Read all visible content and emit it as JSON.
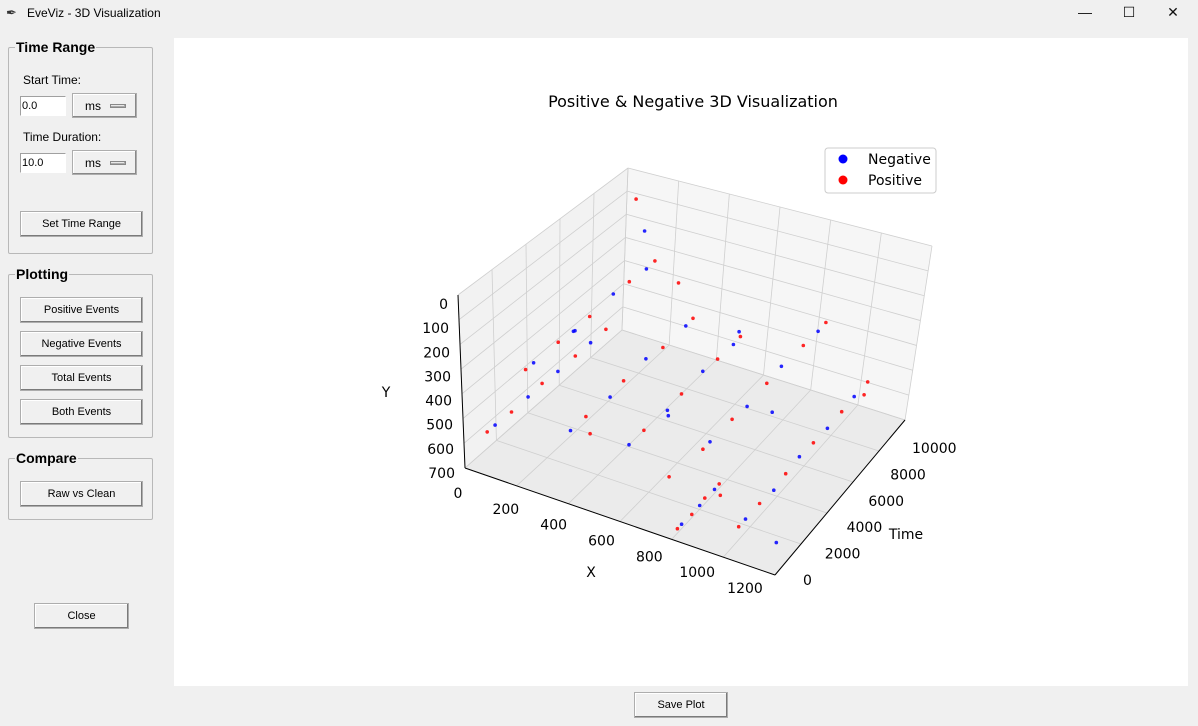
{
  "window": {
    "title": "EveViz - 3D Visualization",
    "icon": "feather-icon",
    "controls": [
      "minimize-icon",
      "maximize-icon",
      "close-icon"
    ]
  },
  "sidebar": {
    "time_range": {
      "title": "Time Range",
      "start_label": "Start Time:",
      "start_value": "0.0",
      "start_unit": "ms",
      "duration_label": "Time Duration:",
      "duration_value": "10.0",
      "duration_unit": "ms",
      "set_button": "Set Time Range"
    },
    "plotting": {
      "title": "Plotting",
      "buttons": [
        "Positive Events",
        "Negative Events",
        "Total Events",
        "Both Events"
      ]
    },
    "compare": {
      "title": "Compare",
      "buttons": [
        "Raw vs Clean"
      ]
    },
    "close_button": "Close"
  },
  "save_button": "Save Plot",
  "chart_data": {
    "type": "scatter3d",
    "title": "Positive & Negative 3D Visualization",
    "xlabel": "X",
    "ylabel": "Time",
    "zlabel": "Y",
    "xlim": [
      0,
      1200
    ],
    "tlim": [
      0,
      10000
    ],
    "ylim": [
      0,
      700
    ],
    "y_inverted": true,
    "x_ticks": [
      "0",
      "200",
      "400",
      "600",
      "800",
      "1000",
      "1200"
    ],
    "t_ticks": [
      "0",
      "2000",
      "4000",
      "6000",
      "8000",
      "10000"
    ],
    "y_ticks": [
      "0",
      "100",
      "200",
      "300",
      "400",
      "500",
      "600",
      "700"
    ],
    "grid": true,
    "legend_placement": "top-right",
    "point_format": [
      "x",
      "time",
      "y"
    ],
    "series": [
      {
        "name": "Negative",
        "color": "#0000ff",
        "points": [
          [
            60,
            1000,
            560
          ],
          [
            65,
            3000,
            555
          ],
          [
            58,
            5000,
            565
          ],
          [
            62,
            7000,
            558
          ],
          [
            150,
            2000,
            330
          ],
          [
            155,
            4500,
            335
          ],
          [
            148,
            7000,
            325
          ],
          [
            152,
            9000,
            332
          ],
          [
            350,
            1000,
            480
          ],
          [
            355,
            3500,
            485
          ],
          [
            345,
            6000,
            475
          ],
          [
            352,
            8500,
            482
          ],
          [
            600,
            500,
            420
          ],
          [
            605,
            3000,
            425
          ],
          [
            598,
            5500,
            415
          ],
          [
            602,
            7500,
            422
          ],
          [
            850,
            1500,
            380
          ],
          [
            855,
            4000,
            385
          ],
          [
            848,
            6500,
            375
          ],
          [
            852,
            9000,
            382
          ],
          [
            1050,
            500,
            560
          ],
          [
            1055,
            2500,
            565
          ],
          [
            1048,
            4500,
            555
          ],
          [
            1052,
            6500,
            562
          ],
          [
            1050,
            8500,
            558
          ],
          [
            820,
            300,
            650
          ],
          [
            825,
            1500,
            645
          ],
          [
            818,
            2700,
            655
          ],
          [
            300,
            2000,
            150
          ],
          [
            700,
            6000,
            250
          ],
          [
            1000,
            3000,
            300
          ],
          [
            200,
            8000,
            100
          ],
          [
            1150,
            1000,
            650
          ],
          [
            500,
            5000,
            600
          ]
        ]
      },
      {
        "name": "Positive",
        "color": "#ff0000",
        "points": [
          [
            60,
            500,
            560
          ],
          [
            62,
            2000,
            562
          ],
          [
            58,
            4000,
            558
          ],
          [
            64,
            6000,
            556
          ],
          [
            60,
            8000,
            560
          ],
          [
            150,
            1500,
            330
          ],
          [
            152,
            3500,
            328
          ],
          [
            150,
            5500,
            334
          ],
          [
            148,
            8000,
            330
          ],
          [
            154,
            9500,
            326
          ],
          [
            350,
            2000,
            480
          ],
          [
            348,
            4500,
            478
          ],
          [
            352,
            7000,
            484
          ],
          [
            350,
            9000,
            480
          ],
          [
            600,
            1500,
            420
          ],
          [
            602,
            4000,
            418
          ],
          [
            598,
            6500,
            424
          ],
          [
            600,
            8000,
            420
          ],
          [
            850,
            1000,
            380
          ],
          [
            852,
            3000,
            378
          ],
          [
            848,
            5500,
            384
          ],
          [
            850,
            8000,
            380
          ],
          [
            854,
            9500,
            376
          ],
          [
            1050,
            0,
            560
          ],
          [
            1052,
            1500,
            558
          ],
          [
            1048,
            3500,
            562
          ],
          [
            1050,
            5500,
            560
          ],
          [
            1054,
            7500,
            556
          ],
          [
            1050,
            9500,
            560
          ],
          [
            820,
            0,
            650
          ],
          [
            822,
            1000,
            652
          ],
          [
            818,
            2000,
            648
          ],
          [
            820,
            3000,
            650
          ],
          [
            100,
            9000,
            50
          ],
          [
            400,
            7000,
            200
          ],
          [
            950,
            500,
            500
          ],
          [
            1200,
            6000,
            350
          ],
          [
            650,
            2500,
            650
          ],
          [
            250,
            4000,
            700
          ]
        ]
      }
    ]
  }
}
